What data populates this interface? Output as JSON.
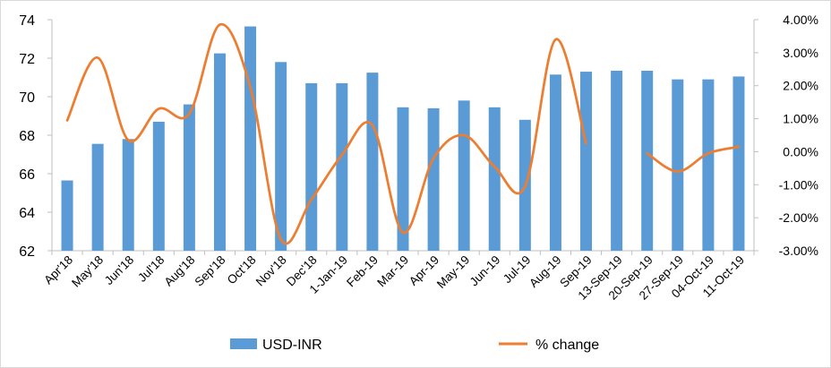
{
  "chart_data": {
    "type": "bar",
    "categories": [
      "Apr'18",
      "May'18",
      "Jun'18",
      "Jul'18",
      "Aug'18",
      "Sep'18",
      "Oct'18",
      "Nov'18",
      "Dec'18",
      "1-Jan-19",
      "Feb-19",
      "Mar-19",
      "Apr-19",
      "May-19",
      "Jun-19",
      "Jul-19",
      "Aug-19",
      "Sep-19",
      "13-Sep-19",
      "20-Sep-19",
      "27-Sep-19",
      "04-Oct-19",
      "11-Oct-19"
    ],
    "series": [
      {
        "name": "USD-INR",
        "type": "bar",
        "axis": "left",
        "color": "#5B9BD5",
        "values": [
          65.65,
          67.55,
          67.8,
          68.7,
          69.6,
          72.25,
          73.65,
          71.8,
          70.7,
          70.7,
          71.25,
          69.45,
          69.4,
          69.8,
          69.45,
          68.8,
          71.15,
          71.3,
          71.35,
          71.35,
          70.9,
          70.9,
          71.05
        ]
      },
      {
        "name": "% change",
        "type": "line",
        "axis": "right",
        "color": "#ED7D31",
        "values": [
          0.95,
          2.85,
          0.35,
          1.3,
          1.15,
          3.85,
          1.95,
          -2.65,
          -1.45,
          -0.1,
          0.8,
          -2.45,
          -0.2,
          0.5,
          -0.45,
          -1.05,
          3.4,
          0.25,
          null,
          -0.05,
          -0.6,
          -0.05,
          0.15
        ]
      }
    ],
    "y_left": {
      "min": 62,
      "max": 74,
      "step": 2,
      "ticks": [
        "62",
        "64",
        "66",
        "68",
        "70",
        "72",
        "74"
      ]
    },
    "y_right": {
      "min": -3,
      "max": 4,
      "step": 1,
      "ticks": [
        "-3.00%",
        "-2.00%",
        "-1.00%",
        "0.00%",
        "1.00%",
        "2.00%",
        "3.00%",
        "4.00%"
      ]
    },
    "grid": false,
    "legend_position": "bottom",
    "legend": [
      {
        "label": "USD-INR",
        "marker": "bar",
        "color": "#5B9BD5"
      },
      {
        "label": "% change",
        "marker": "line",
        "color": "#ED7D31"
      }
    ],
    "title": "",
    "xlabel": "",
    "ylabel": ""
  }
}
